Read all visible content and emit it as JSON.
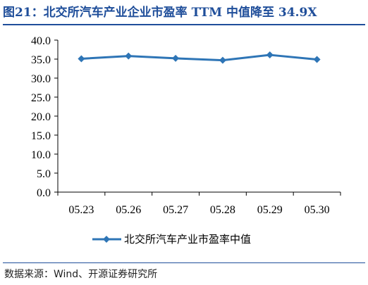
{
  "title": "图21：北交所汽车产业企业市盈率 TTM 中值降至 34.9X",
  "source": "数据来源：Wind、开源证券研究所",
  "colors": {
    "title": "#1f4e9a",
    "series": "#2e75b6",
    "axis": "#000000"
  },
  "chart_data": {
    "type": "line",
    "categories": [
      "05.23",
      "05.26",
      "05.27",
      "05.28",
      "05.29",
      "05.30"
    ],
    "series": [
      {
        "name": "北交所汽车产业市盈率中值",
        "values": [
          35.1,
          35.8,
          35.2,
          34.7,
          36.1,
          34.9
        ]
      }
    ],
    "ylim": [
      0,
      40
    ],
    "yticks": [
      "0.0",
      "5.0",
      "10.0",
      "15.0",
      "20.0",
      "25.0",
      "30.0",
      "35.0",
      "40.0"
    ],
    "grid": false,
    "legend": "bottom-center",
    "marker": "diamond"
  }
}
